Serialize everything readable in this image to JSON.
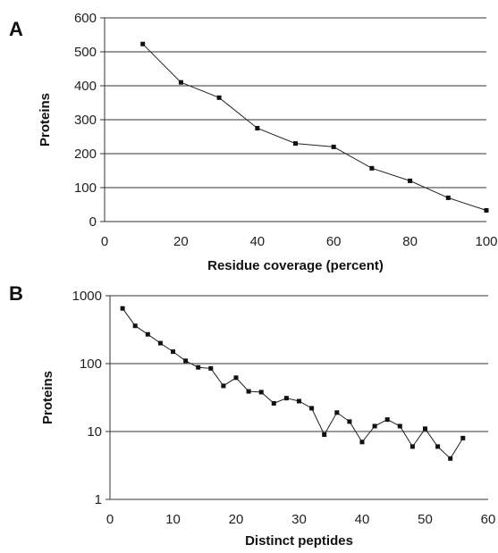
{
  "chart_data": [
    {
      "panel": "A",
      "type": "line",
      "title": "",
      "xlabel": "Residue coverage (percent)",
      "ylabel": "Proteins",
      "xlim": [
        0,
        100
      ],
      "ylim": [
        0,
        600
      ],
      "xticks": [
        0,
        20,
        40,
        60,
        80,
        100
      ],
      "yticks": [
        0,
        100,
        200,
        300,
        400,
        500,
        600
      ],
      "grid": "horizontal",
      "y_scale": "linear",
      "series": [
        {
          "x": [
            10,
            20,
            30,
            40,
            50,
            60,
            70,
            80,
            90,
            100
          ],
          "values": [
            523,
            410,
            365,
            275,
            230,
            220,
            157,
            120,
            70,
            33
          ]
        }
      ]
    },
    {
      "panel": "B",
      "type": "line",
      "title": "",
      "xlabel": "Distinct peptides",
      "ylabel": "Proteins",
      "xlim": [
        0,
        60
      ],
      "ylim": [
        1,
        1000
      ],
      "xticks": [
        0,
        10,
        20,
        30,
        40,
        50,
        60
      ],
      "yticks": [
        1,
        10,
        100,
        1000
      ],
      "grid": "horizontal",
      "y_scale": "log",
      "series": [
        {
          "x": [
            2,
            4,
            6,
            8,
            10,
            12,
            14,
            16,
            18,
            20,
            22,
            24,
            26,
            28,
            30,
            32,
            34,
            36,
            38,
            40,
            42,
            44,
            46,
            48,
            50,
            52,
            54,
            56
          ],
          "values": [
            650,
            360,
            270,
            200,
            150,
            110,
            88,
            85,
            47,
            62,
            39,
            38,
            26,
            31,
            28,
            22,
            9,
            19,
            14,
            7,
            12,
            15,
            12,
            6,
            11,
            6,
            4,
            8
          ]
        }
      ]
    }
  ],
  "style": {
    "line_color": "#222222",
    "marker_color": "#111111",
    "grid_color": "#333333",
    "axis_color": "#333333"
  }
}
